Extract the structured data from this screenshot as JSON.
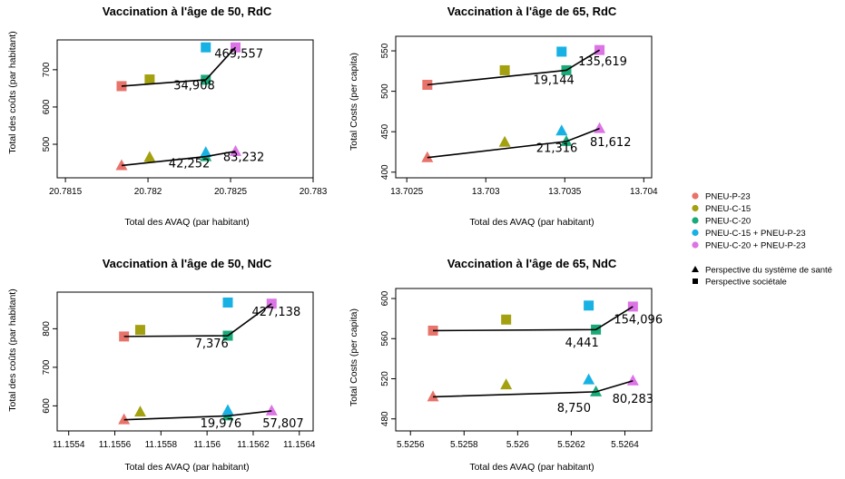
{
  "legend": {
    "series": [
      {
        "name": "PNEU-P-23",
        "color": "#E8736A"
      },
      {
        "name": "PNEU-C-15",
        "color": "#A3A10F"
      },
      {
        "name": "PNEU-C-20",
        "color": "#19AA78"
      },
      {
        "name": "PNEU-C-15 + PNEU-P-23",
        "color": "#17B1E4"
      },
      {
        "name": "PNEU-C-20 + PNEU-P-23",
        "color": "#DC74E6"
      }
    ],
    "shapes": [
      {
        "label": "Perspective du système de santé",
        "shape": "triangle"
      },
      {
        "label": "Perspective sociétale",
        "shape": "square"
      }
    ]
  },
  "chart_data": [
    {
      "type": "scatter",
      "title": "Vaccination à l'âge de 50, RdC",
      "xlabel": "Total des AVAQ (par habitant)",
      "ylabel": "Total des coûts (par habitant)",
      "xlim": [
        20.78145,
        20.783
      ],
      "ylim": [
        410,
        780
      ],
      "xticks": [
        20.7815,
        20.782,
        20.7825,
        20.783
      ],
      "xtick_labels": [
        "20.7815",
        "20.782",
        "20.7825",
        "20.783"
      ],
      "yticks": [
        500,
        600,
        700
      ],
      "ytick_labels": [
        "500",
        "600",
        "700"
      ],
      "points": [
        {
          "series": 0,
          "shape": "square",
          "x": 20.78184,
          "y": 656
        },
        {
          "series": 1,
          "shape": "square",
          "x": 20.78201,
          "y": 674
        },
        {
          "series": 2,
          "shape": "square",
          "x": 20.78235,
          "y": 673
        },
        {
          "series": 3,
          "shape": "square",
          "x": 20.78235,
          "y": 760
        },
        {
          "series": 4,
          "shape": "square",
          "x": 20.78253,
          "y": 760
        },
        {
          "series": 0,
          "shape": "triangle",
          "x": 20.78184,
          "y": 443
        },
        {
          "series": 1,
          "shape": "triangle",
          "x": 20.78201,
          "y": 465
        },
        {
          "series": 2,
          "shape": "triangle",
          "x": 20.78235,
          "y": 467
        },
        {
          "series": 3,
          "shape": "triangle",
          "x": 20.78235,
          "y": 478
        },
        {
          "series": 4,
          "shape": "triangle",
          "x": 20.78253,
          "y": 481
        }
      ],
      "frontiers": [
        [
          [
            20.78184,
            656
          ],
          [
            20.78235,
            673
          ],
          [
            20.78253,
            760
          ]
        ],
        [
          [
            20.78184,
            443
          ],
          [
            20.78235,
            467
          ],
          [
            20.78253,
            481
          ]
        ]
      ],
      "labels": [
        {
          "text": "469,557",
          "x": 20.78255,
          "y": 732
        },
        {
          "text": "34,908",
          "x": 20.78228,
          "y": 647
        },
        {
          "text": "42,252",
          "x": 20.78225,
          "y": 438
        },
        {
          "text": "83,232",
          "x": 20.78258,
          "y": 455
        }
      ]
    },
    {
      "type": "scatter",
      "title": "Vaccination à l'âge de 65, RdC",
      "xlabel": "Total des AVAQ (par habitant)",
      "ylabel": "Total Costs (per capita)",
      "xlim": [
        13.70243,
        13.70405
      ],
      "ylim": [
        393,
        568
      ],
      "xticks": [
        13.7025,
        13.703,
        13.7035,
        13.704
      ],
      "xtick_labels": [
        "13.7025",
        "13.703",
        "13.7035",
        "13.704"
      ],
      "yticks": [
        400,
        450,
        500,
        550
      ],
      "ytick_labels": [
        "400",
        "450",
        "500",
        "550"
      ],
      "points": [
        {
          "series": 0,
          "shape": "square",
          "x": 13.70263,
          "y": 508
        },
        {
          "series": 1,
          "shape": "square",
          "x": 13.70312,
          "y": 526
        },
        {
          "series": 2,
          "shape": "square",
          "x": 13.70351,
          "y": 526
        },
        {
          "series": 3,
          "shape": "square",
          "x": 13.70348,
          "y": 549
        },
        {
          "series": 4,
          "shape": "square",
          "x": 13.70372,
          "y": 551
        },
        {
          "series": 0,
          "shape": "triangle",
          "x": 13.70263,
          "y": 418
        },
        {
          "series": 1,
          "shape": "triangle",
          "x": 13.70312,
          "y": 437
        },
        {
          "series": 2,
          "shape": "triangle",
          "x": 13.70351,
          "y": 438
        },
        {
          "series": 3,
          "shape": "triangle",
          "x": 13.70348,
          "y": 451
        },
        {
          "series": 4,
          "shape": "triangle",
          "x": 13.70372,
          "y": 454
        }
      ],
      "frontiers": [
        [
          [
            13.70263,
            508
          ],
          [
            13.70351,
            526
          ],
          [
            13.70372,
            551
          ]
        ],
        [
          [
            13.70263,
            418
          ],
          [
            13.70351,
            438
          ],
          [
            13.70372,
            454
          ]
        ]
      ],
      "labels": [
        {
          "text": "135,619",
          "x": 13.70374,
          "y": 532
        },
        {
          "text": "19,144",
          "x": 13.70343,
          "y": 509
        },
        {
          "text": "81,612",
          "x": 13.70379,
          "y": 432
        },
        {
          "text": "21,316",
          "x": 13.70345,
          "y": 425
        }
      ]
    },
    {
      "type": "scatter",
      "title": "Vaccination à l'âge de 50, NdC",
      "xlabel": "Total des AVAQ (par habitant)",
      "ylabel": "Total des coûts (par habitant)",
      "xlim": [
        11.15535,
        11.15646
      ],
      "ylim": [
        535,
        895
      ],
      "xticks": [
        11.1554,
        11.1556,
        11.1558,
        11.156,
        11.1562,
        11.1564
      ],
      "xtick_labels": [
        "11.1554",
        "11.1556",
        "11.1558",
        "11.156",
        "11.1562",
        "11.1564"
      ],
      "yticks": [
        600,
        700,
        800
      ],
      "ytick_labels": [
        "600",
        "700",
        "800"
      ],
      "points": [
        {
          "series": 0,
          "shape": "square",
          "x": 11.15564,
          "y": 780
        },
        {
          "series": 1,
          "shape": "square",
          "x": 11.15571,
          "y": 797
        },
        {
          "series": 2,
          "shape": "square",
          "x": 11.15609,
          "y": 782
        },
        {
          "series": 3,
          "shape": "square",
          "x": 11.15609,
          "y": 868
        },
        {
          "series": 4,
          "shape": "square",
          "x": 11.15628,
          "y": 865
        },
        {
          "series": 0,
          "shape": "triangle",
          "x": 11.15564,
          "y": 564
        },
        {
          "series": 1,
          "shape": "triangle",
          "x": 11.15571,
          "y": 584
        },
        {
          "series": 2,
          "shape": "triangle",
          "x": 11.15609,
          "y": 574
        },
        {
          "series": 3,
          "shape": "triangle",
          "x": 11.15609,
          "y": 588
        },
        {
          "series": 4,
          "shape": "triangle",
          "x": 11.15628,
          "y": 587
        }
      ],
      "frontiers": [
        [
          [
            11.15564,
            780
          ],
          [
            11.15609,
            782
          ],
          [
            11.15628,
            865
          ]
        ],
        [
          [
            11.15564,
            564
          ],
          [
            11.15609,
            574
          ],
          [
            11.15628,
            587
          ]
        ]
      ],
      "labels": [
        {
          "text": "427,138",
          "x": 11.1563,
          "y": 834
        },
        {
          "text": "7,376",
          "x": 11.15602,
          "y": 752
        },
        {
          "text": "19,976",
          "x": 11.15606,
          "y": 545
        },
        {
          "text": "57,807",
          "x": 11.15633,
          "y": 545
        }
      ]
    },
    {
      "type": "scatter",
      "title": "Vaccination à l'âge de 65, NdC",
      "xlabel": "Total des AVAQ (par habitant)",
      "ylabel": "Total Costs (per capita)",
      "xlim": [
        5.525545,
        5.5265
      ],
      "ylim": [
        468,
        610
      ],
      "xticks": [
        5.5256,
        5.5258,
        5.526,
        5.5262,
        5.5264
      ],
      "xtick_labels": [
        "5.5256",
        "5.5258",
        "5.526",
        "5.5262",
        "5.5264"
      ],
      "yticks": [
        480,
        520,
        560,
        600
      ],
      "ytick_labels": [
        "480",
        "520",
        "560",
        "600"
      ],
      "points": [
        {
          "series": 0,
          "shape": "square",
          "x": 5.525684,
          "y": 568
        },
        {
          "series": 1,
          "shape": "square",
          "x": 5.525957,
          "y": 579
        },
        {
          "series": 2,
          "shape": "square",
          "x": 5.526292,
          "y": 569
        },
        {
          "series": 3,
          "shape": "square",
          "x": 5.526265,
          "y": 593
        },
        {
          "series": 4,
          "shape": "square",
          "x": 5.52643,
          "y": 592
        },
        {
          "series": 0,
          "shape": "triangle",
          "x": 5.525684,
          "y": 502
        },
        {
          "series": 1,
          "shape": "triangle",
          "x": 5.525957,
          "y": 514
        },
        {
          "series": 2,
          "shape": "triangle",
          "x": 5.526292,
          "y": 507
        },
        {
          "series": 3,
          "shape": "triangle",
          "x": 5.526265,
          "y": 519
        },
        {
          "series": 4,
          "shape": "triangle",
          "x": 5.52643,
          "y": 518
        }
      ],
      "frontiers": [
        [
          [
            5.525684,
            568
          ],
          [
            5.526292,
            569
          ],
          [
            5.52643,
            592
          ]
        ],
        [
          [
            5.525684,
            502
          ],
          [
            5.526292,
            507
          ],
          [
            5.52643,
            518
          ]
        ]
      ],
      "labels": [
        {
          "text": "154,096",
          "x": 5.52645,
          "y": 575
        },
        {
          "text": "4,441",
          "x": 5.52624,
          "y": 552
        },
        {
          "text": "80,283",
          "x": 5.52643,
          "y": 496
        },
        {
          "text": "8,750",
          "x": 5.52621,
          "y": 487
        }
      ]
    }
  ]
}
